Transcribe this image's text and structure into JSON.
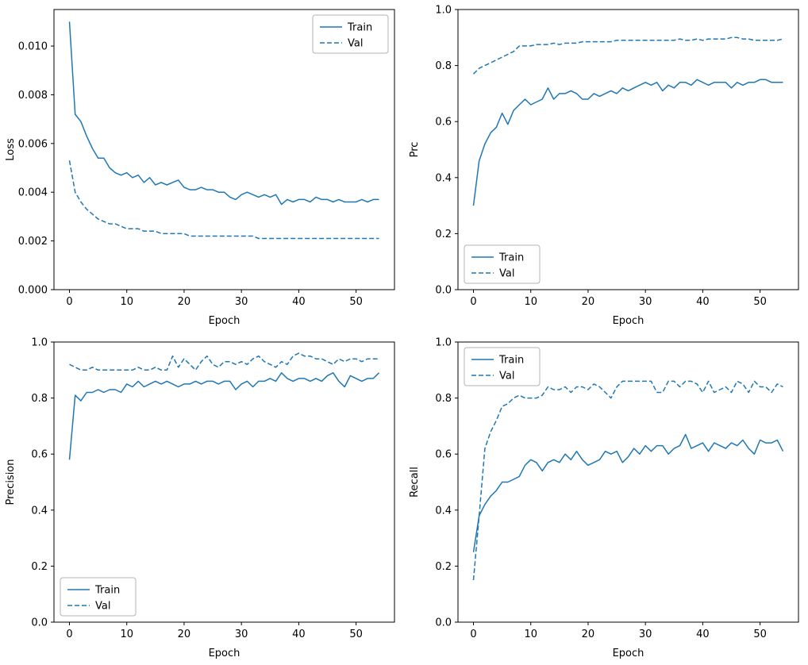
{
  "figure": {
    "background": "#ffffff",
    "accent_color": "#1f77b4"
  },
  "epochs": [
    0,
    1,
    2,
    3,
    4,
    5,
    6,
    7,
    8,
    9,
    10,
    11,
    12,
    13,
    14,
    15,
    16,
    17,
    18,
    19,
    20,
    21,
    22,
    23,
    24,
    25,
    26,
    27,
    28,
    29,
    30,
    31,
    32,
    33,
    34,
    35,
    36,
    37,
    38,
    39,
    40,
    41,
    42,
    43,
    44,
    45,
    46,
    47,
    48,
    49,
    50,
    51,
    52,
    53,
    54
  ],
  "chart_data": [
    {
      "id": "loss",
      "type": "line",
      "title": "",
      "xlabel": "Epoch",
      "ylabel": "Loss",
      "xlim": [
        -2.7,
        56.7
      ],
      "ylim": [
        0,
        0.0115
      ],
      "xticks": [
        0,
        10,
        20,
        30,
        40,
        50
      ],
      "yticks": [
        0.0,
        0.002,
        0.004,
        0.006,
        0.008,
        0.01
      ],
      "ytick_decimals": 3,
      "grid": false,
      "legend_loc": "upper-right",
      "series": [
        {
          "name": "Train",
          "style": "solid",
          "color": "#1f77b4",
          "values": [
            0.011,
            0.0072,
            0.0069,
            0.0063,
            0.0058,
            0.0054,
            0.0054,
            0.005,
            0.0048,
            0.0047,
            0.0048,
            0.0046,
            0.0047,
            0.0044,
            0.0046,
            0.0043,
            0.0044,
            0.0043,
            0.0044,
            0.0045,
            0.0042,
            0.0041,
            0.0041,
            0.0042,
            0.0041,
            0.0041,
            0.004,
            0.004,
            0.0038,
            0.0037,
            0.0039,
            0.004,
            0.0039,
            0.0038,
            0.0039,
            0.0038,
            0.0039,
            0.0035,
            0.0037,
            0.0036,
            0.0037,
            0.0037,
            0.0036,
            0.0038,
            0.0037,
            0.0037,
            0.0036,
            0.0037,
            0.0036,
            0.0036,
            0.0036,
            0.0037,
            0.0036,
            0.0037,
            0.0037
          ]
        },
        {
          "name": "Val",
          "style": "dashed",
          "color": "#1f77b4",
          "values": [
            0.0053,
            0.004,
            0.0036,
            0.0033,
            0.0031,
            0.0029,
            0.0028,
            0.0027,
            0.0027,
            0.0026,
            0.0025,
            0.0025,
            0.0025,
            0.0024,
            0.0024,
            0.0024,
            0.0023,
            0.0023,
            0.0023,
            0.0023,
            0.0023,
            0.0022,
            0.0022,
            0.0022,
            0.0022,
            0.0022,
            0.0022,
            0.0022,
            0.0022,
            0.0022,
            0.0022,
            0.0022,
            0.0022,
            0.0021,
            0.0021,
            0.0021,
            0.0021,
            0.0021,
            0.0021,
            0.0021,
            0.0021,
            0.0021,
            0.0021,
            0.0021,
            0.0021,
            0.0021,
            0.0021,
            0.0021,
            0.0021,
            0.0021,
            0.0021,
            0.0021,
            0.0021,
            0.0021,
            0.0021
          ]
        }
      ]
    },
    {
      "id": "prc",
      "type": "line",
      "title": "",
      "xlabel": "Epoch",
      "ylabel": "Prc",
      "xlim": [
        -2.7,
        56.7
      ],
      "ylim": [
        0.0,
        1.0
      ],
      "xticks": [
        0,
        10,
        20,
        30,
        40,
        50
      ],
      "yticks": [
        0.0,
        0.2,
        0.4,
        0.6,
        0.8,
        1.0
      ],
      "ytick_decimals": 1,
      "grid": false,
      "legend_loc": "lower-left",
      "series": [
        {
          "name": "Train",
          "style": "solid",
          "color": "#1f77b4",
          "values": [
            0.3,
            0.46,
            0.52,
            0.56,
            0.58,
            0.63,
            0.59,
            0.64,
            0.66,
            0.68,
            0.66,
            0.67,
            0.68,
            0.72,
            0.68,
            0.7,
            0.7,
            0.71,
            0.7,
            0.68,
            0.68,
            0.7,
            0.69,
            0.7,
            0.71,
            0.7,
            0.72,
            0.71,
            0.72,
            0.73,
            0.74,
            0.73,
            0.74,
            0.71,
            0.73,
            0.72,
            0.74,
            0.74,
            0.73,
            0.75,
            0.74,
            0.73,
            0.74,
            0.74,
            0.74,
            0.72,
            0.74,
            0.73,
            0.74,
            0.74,
            0.75,
            0.75,
            0.74,
            0.74,
            0.74
          ]
        },
        {
          "name": "Val",
          "style": "dashed",
          "color": "#1f77b4",
          "values": [
            0.77,
            0.79,
            0.8,
            0.81,
            0.82,
            0.83,
            0.84,
            0.85,
            0.87,
            0.87,
            0.87,
            0.875,
            0.875,
            0.875,
            0.88,
            0.875,
            0.88,
            0.88,
            0.88,
            0.885,
            0.885,
            0.885,
            0.885,
            0.885,
            0.885,
            0.89,
            0.89,
            0.89,
            0.89,
            0.89,
            0.89,
            0.89,
            0.89,
            0.89,
            0.89,
            0.89,
            0.895,
            0.89,
            0.89,
            0.895,
            0.89,
            0.895,
            0.895,
            0.895,
            0.895,
            0.9,
            0.9,
            0.895,
            0.895,
            0.89,
            0.89,
            0.89,
            0.89,
            0.89,
            0.895
          ]
        }
      ]
    },
    {
      "id": "precision",
      "type": "line",
      "title": "",
      "xlabel": "Epoch",
      "ylabel": "Precision",
      "xlim": [
        -2.7,
        56.7
      ],
      "ylim": [
        0.0,
        1.0
      ],
      "xticks": [
        0,
        10,
        20,
        30,
        40,
        50
      ],
      "yticks": [
        0.0,
        0.2,
        0.4,
        0.6,
        0.8,
        1.0
      ],
      "ytick_decimals": 1,
      "grid": false,
      "legend_loc": "lower-left",
      "series": [
        {
          "name": "Train",
          "style": "solid",
          "color": "#1f77b4",
          "values": [
            0.58,
            0.81,
            0.79,
            0.82,
            0.82,
            0.83,
            0.82,
            0.83,
            0.83,
            0.82,
            0.85,
            0.84,
            0.86,
            0.84,
            0.85,
            0.86,
            0.85,
            0.86,
            0.85,
            0.84,
            0.85,
            0.85,
            0.86,
            0.85,
            0.86,
            0.86,
            0.85,
            0.86,
            0.86,
            0.83,
            0.85,
            0.86,
            0.84,
            0.86,
            0.86,
            0.87,
            0.86,
            0.89,
            0.87,
            0.86,
            0.87,
            0.87,
            0.86,
            0.87,
            0.86,
            0.88,
            0.89,
            0.86,
            0.84,
            0.88,
            0.87,
            0.86,
            0.87,
            0.87,
            0.89
          ]
        },
        {
          "name": "Val",
          "style": "dashed",
          "color": "#1f77b4",
          "values": [
            0.92,
            0.91,
            0.9,
            0.9,
            0.91,
            0.9,
            0.9,
            0.9,
            0.9,
            0.9,
            0.9,
            0.9,
            0.91,
            0.9,
            0.9,
            0.91,
            0.9,
            0.9,
            0.95,
            0.91,
            0.94,
            0.92,
            0.9,
            0.93,
            0.95,
            0.92,
            0.91,
            0.93,
            0.93,
            0.92,
            0.93,
            0.92,
            0.94,
            0.95,
            0.93,
            0.92,
            0.91,
            0.93,
            0.92,
            0.95,
            0.96,
            0.95,
            0.95,
            0.94,
            0.94,
            0.93,
            0.92,
            0.94,
            0.93,
            0.94,
            0.94,
            0.93,
            0.94,
            0.94,
            0.94
          ]
        }
      ]
    },
    {
      "id": "recall",
      "type": "line",
      "title": "",
      "xlabel": "Epoch",
      "ylabel": "Recall",
      "xlim": [
        -2.7,
        56.7
      ],
      "ylim": [
        0.0,
        1.0
      ],
      "xticks": [
        0,
        10,
        20,
        30,
        40,
        50
      ],
      "yticks": [
        0.0,
        0.2,
        0.4,
        0.6,
        0.8,
        1.0
      ],
      "ytick_decimals": 1,
      "grid": false,
      "legend_loc": "upper-left",
      "series": [
        {
          "name": "Train",
          "style": "solid",
          "color": "#1f77b4",
          "values": [
            0.25,
            0.38,
            0.42,
            0.45,
            0.47,
            0.5,
            0.5,
            0.51,
            0.52,
            0.56,
            0.58,
            0.57,
            0.54,
            0.57,
            0.58,
            0.57,
            0.6,
            0.58,
            0.61,
            0.58,
            0.56,
            0.57,
            0.58,
            0.61,
            0.6,
            0.61,
            0.57,
            0.59,
            0.62,
            0.6,
            0.63,
            0.61,
            0.63,
            0.63,
            0.6,
            0.62,
            0.63,
            0.67,
            0.62,
            0.63,
            0.64,
            0.61,
            0.64,
            0.63,
            0.62,
            0.64,
            0.63,
            0.65,
            0.62,
            0.6,
            0.65,
            0.64,
            0.64,
            0.65,
            0.61
          ]
        },
        {
          "name": "Val",
          "style": "dashed",
          "color": "#1f77b4",
          "values": [
            0.15,
            0.38,
            0.62,
            0.68,
            0.72,
            0.77,
            0.78,
            0.8,
            0.81,
            0.8,
            0.8,
            0.8,
            0.81,
            0.84,
            0.83,
            0.83,
            0.84,
            0.82,
            0.84,
            0.84,
            0.83,
            0.85,
            0.84,
            0.82,
            0.8,
            0.84,
            0.86,
            0.86,
            0.86,
            0.86,
            0.86,
            0.86,
            0.82,
            0.82,
            0.86,
            0.86,
            0.84,
            0.86,
            0.86,
            0.85,
            0.82,
            0.86,
            0.82,
            0.83,
            0.84,
            0.82,
            0.86,
            0.85,
            0.82,
            0.86,
            0.84,
            0.84,
            0.82,
            0.85,
            0.84
          ]
        }
      ]
    }
  ]
}
